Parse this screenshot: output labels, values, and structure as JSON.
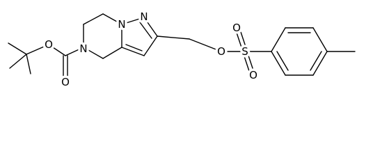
{
  "atoms": [
    "O",
    "O",
    "N",
    "N",
    "N",
    "O",
    "S",
    "O",
    "O"
  ]
}
